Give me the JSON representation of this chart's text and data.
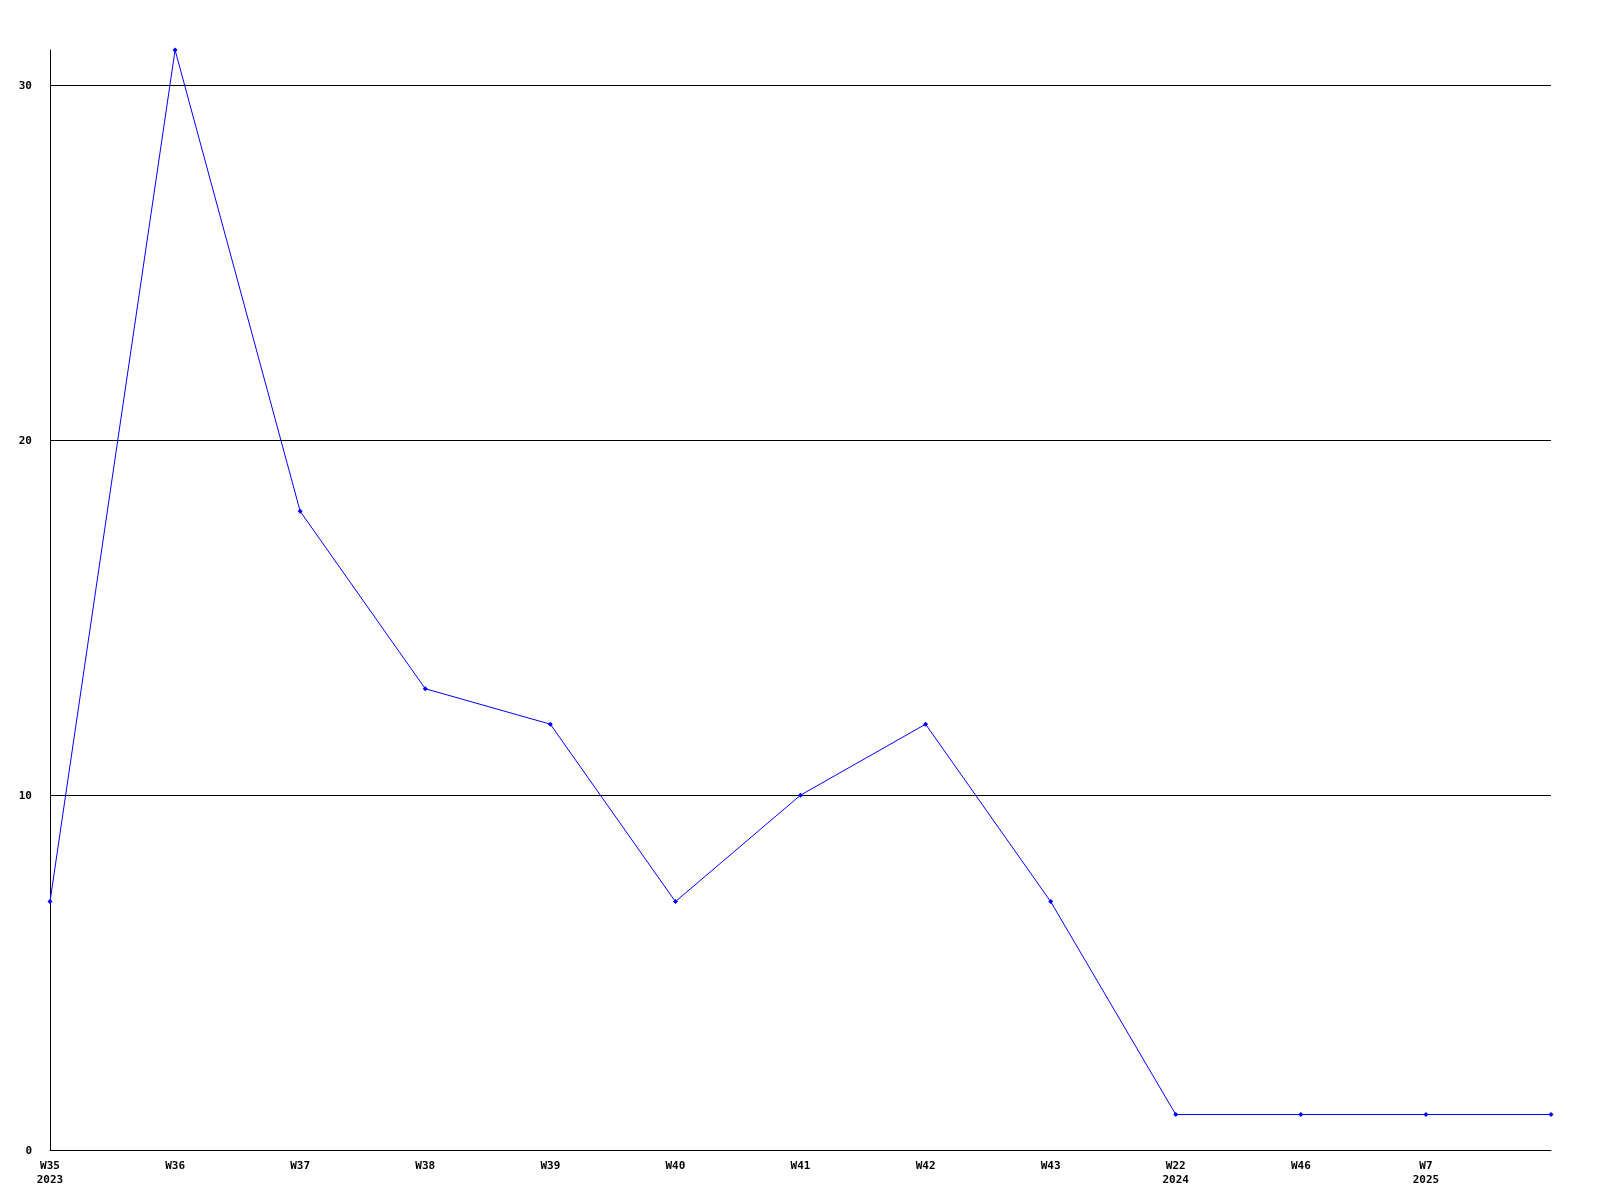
{
  "chart_data": {
    "type": "line",
    "categories": [
      "W35\n2023",
      "W36",
      "W37",
      "W38",
      "W39",
      "W40",
      "W41",
      "W42",
      "W43",
      "W22\n2024",
      "W46",
      "W7\n2025",
      null
    ],
    "series": [
      {
        "color": "#0000ff",
        "values": [
          7,
          31,
          18,
          13,
          12,
          7,
          10,
          12,
          7,
          1,
          1,
          1,
          1
        ]
      }
    ],
    "ylim": [
      0,
      31
    ],
    "yticks": [
      0,
      10,
      20,
      30
    ],
    "grid": "y",
    "marker": "diamond",
    "line_style": "solid",
    "legend": false
  }
}
